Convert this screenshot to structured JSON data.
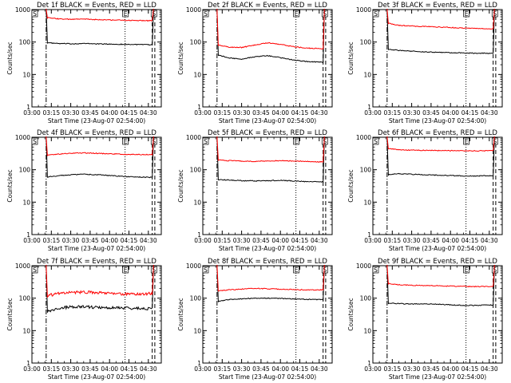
{
  "chart_data": [
    {
      "type": "line",
      "title": "Det 1f BLACK = Events, RED = LLD",
      "xlabel": "Start Time (23-Aug-07 02:54:00)",
      "ylabel": "Counts/sec",
      "yscale": "log",
      "ylim": [
        1,
        1000
      ],
      "xlim_min": [
        0,
        100
      ],
      "xticks_min": [
        0,
        15,
        30,
        45,
        60,
        75,
        90
      ],
      "xtick_labels": [
        "03:00",
        "03:15",
        "03:30",
        "03:45",
        "04:00",
        "04:15",
        "04:30"
      ],
      "yticks": [
        1,
        10,
        100,
        1000
      ],
      "ytick_labels": [
        "1",
        "10",
        "100",
        "1000"
      ],
      "markers": {
        "S": [
          1,
          94
        ],
        "E": [
          72
        ]
      },
      "dashdot_min": [
        11
      ],
      "dotted_min": [
        72
      ],
      "dashed_min": [
        93,
        95
      ],
      "data_start_min": 11,
      "data_end_min": 94,
      "series": [
        {
          "name": "Events",
          "color": "#000000",
          "x": [
            12,
            20,
            30,
            40,
            50,
            60,
            70,
            80,
            93
          ],
          "y": [
            95,
            90,
            88,
            90,
            88,
            86,
            85,
            84,
            82
          ]
        },
        {
          "name": "LLD",
          "color": "#ff0000",
          "x": [
            12,
            20,
            30,
            40,
            50,
            60,
            70,
            80,
            93
          ],
          "y": [
            560,
            520,
            500,
            510,
            490,
            480,
            470,
            460,
            455
          ]
        }
      ]
    },
    {
      "type": "line",
      "title": "Det 2f BLACK = Events, RED = LLD",
      "xlabel": "Start Time (23-Aug-07 02:54:00)",
      "ylabel": "Counts/sec",
      "yscale": "log",
      "ylim": [
        1,
        1000
      ],
      "xlim_min": [
        0,
        100
      ],
      "xticks_min": [
        0,
        15,
        30,
        45,
        60,
        75,
        90
      ],
      "xtick_labels": [
        "03:00",
        "03:15",
        "03:30",
        "03:45",
        "04:00",
        "04:15",
        "04:30"
      ],
      "yticks": [
        1,
        10,
        100,
        1000
      ],
      "ytick_labels": [
        "1",
        "10",
        "100",
        "1000"
      ],
      "markers": {
        "S": [
          1,
          94
        ],
        "E": [
          72
        ]
      },
      "dashdot_min": [
        11
      ],
      "dotted_min": [
        72
      ],
      "dashed_min": [
        93,
        95
      ],
      "data_start_min": 11,
      "data_end_min": 94,
      "series": [
        {
          "name": "Events",
          "color": "#000000",
          "x": [
            12,
            20,
            30,
            40,
            50,
            60,
            70,
            80,
            93
          ],
          "y": [
            40,
            32,
            30,
            35,
            38,
            33,
            28,
            25,
            24
          ]
        },
        {
          "name": "LLD",
          "color": "#ff0000",
          "x": [
            12,
            20,
            30,
            40,
            50,
            60,
            70,
            80,
            93
          ],
          "y": [
            80,
            70,
            68,
            80,
            95,
            85,
            72,
            65,
            62
          ]
        }
      ]
    },
    {
      "type": "line",
      "title": "Det 3f BLACK = Events, RED = LLD",
      "xlabel": "Start Time (23-Aug-07 02:54:00)",
      "ylabel": "Counts/sec",
      "yscale": "log",
      "ylim": [
        1,
        1000
      ],
      "xlim_min": [
        0,
        100
      ],
      "xticks_min": [
        0,
        15,
        30,
        45,
        60,
        75,
        90
      ],
      "xtick_labels": [
        "03:00",
        "03:15",
        "03:30",
        "03:45",
        "04:00",
        "04:15",
        "04:30"
      ],
      "yticks": [
        1,
        10,
        100,
        1000
      ],
      "ytick_labels": [
        "1",
        "10",
        "100",
        "1000"
      ],
      "markers": {
        "S": [
          1,
          94
        ],
        "E": [
          72
        ]
      },
      "dashdot_min": [
        11
      ],
      "dotted_min": [
        72
      ],
      "dashed_min": [
        93,
        95
      ],
      "data_start_min": 11,
      "data_end_min": 94,
      "series": [
        {
          "name": "Events",
          "color": "#000000",
          "x": [
            12,
            20,
            30,
            40,
            50,
            60,
            70,
            80,
            93
          ],
          "y": [
            60,
            55,
            52,
            50,
            48,
            47,
            46,
            45,
            45
          ]
        },
        {
          "name": "LLD",
          "color": "#ff0000",
          "x": [
            12,
            20,
            30,
            40,
            50,
            60,
            70,
            80,
            93
          ],
          "y": [
            380,
            330,
            310,
            300,
            290,
            280,
            270,
            260,
            255
          ]
        }
      ]
    },
    {
      "type": "line",
      "title": "Det 4f BLACK = Events, RED = LLD",
      "xlabel": "Start Time (23-Aug-07 02:54:00)",
      "ylabel": "Counts/sec",
      "yscale": "log",
      "ylim": [
        1,
        1000
      ],
      "xlim_min": [
        0,
        100
      ],
      "xticks_min": [
        0,
        15,
        30,
        45,
        60,
        75,
        90
      ],
      "xtick_labels": [
        "03:00",
        "03:15",
        "03:30",
        "03:45",
        "04:00",
        "04:15",
        "04:30"
      ],
      "yticks": [
        1,
        10,
        100,
        1000
      ],
      "ytick_labels": [
        "1",
        "10",
        "100",
        "1000"
      ],
      "markers": {
        "S": [
          1,
          94
        ],
        "E": [
          72
        ]
      },
      "dashdot_min": [
        11
      ],
      "dotted_min": [
        72
      ],
      "dashed_min": [
        93,
        95
      ],
      "data_start_min": 11,
      "data_end_min": 94,
      "series": [
        {
          "name": "Events",
          "color": "#000000",
          "x": [
            12,
            20,
            30,
            40,
            50,
            60,
            70,
            80,
            93
          ],
          "y": [
            60,
            65,
            70,
            72,
            70,
            66,
            62,
            60,
            58
          ]
        },
        {
          "name": "LLD",
          "color": "#ff0000",
          "x": [
            12,
            20,
            30,
            40,
            50,
            60,
            70,
            80,
            93
          ],
          "y": [
            280,
            300,
            320,
            330,
            320,
            310,
            300,
            295,
            290
          ]
        }
      ]
    },
    {
      "type": "line",
      "title": "Det 5f BLACK = Events, RED = LLD",
      "xlabel": "Start Time (23-Aug-07 02:54:00)",
      "ylabel": "Counts/sec",
      "yscale": "log",
      "ylim": [
        1,
        1000
      ],
      "xlim_min": [
        0,
        100
      ],
      "xticks_min": [
        0,
        15,
        30,
        45,
        60,
        75,
        90
      ],
      "xtick_labels": [
        "03:00",
        "03:15",
        "03:30",
        "03:45",
        "04:00",
        "04:15",
        "04:30"
      ],
      "yticks": [
        1,
        10,
        100,
        1000
      ],
      "ytick_labels": [
        "1",
        "10",
        "100",
        "1000"
      ],
      "markers": {
        "S": [
          1,
          94
        ],
        "E": [
          72
        ]
      },
      "dashdot_min": [
        11
      ],
      "dotted_min": [
        72
      ],
      "dashed_min": [
        93,
        95
      ],
      "data_start_min": 11,
      "data_end_min": 94,
      "series": [
        {
          "name": "Events",
          "color": "#000000",
          "x": [
            12,
            20,
            30,
            40,
            50,
            60,
            70,
            80,
            93
          ],
          "y": [
            50,
            48,
            46,
            45,
            46,
            47,
            45,
            43,
            42
          ]
        },
        {
          "name": "LLD",
          "color": "#ff0000",
          "x": [
            12,
            20,
            30,
            40,
            50,
            60,
            70,
            80,
            93
          ],
          "y": [
            200,
            190,
            185,
            180,
            185,
            190,
            185,
            180,
            175
          ]
        }
      ]
    },
    {
      "type": "line",
      "title": "Det 6f BLACK = Events, RED = LLD",
      "xlabel": "Start Time (23-Aug-07 02:54:00)",
      "ylabel": "Counts/sec",
      "yscale": "log",
      "ylim": [
        1,
        1000
      ],
      "xlim_min": [
        0,
        100
      ],
      "xticks_min": [
        0,
        15,
        30,
        45,
        60,
        75,
        90
      ],
      "xtick_labels": [
        "03:00",
        "03:15",
        "03:30",
        "03:45",
        "04:00",
        "04:15",
        "04:30"
      ],
      "yticks": [
        1,
        10,
        100,
        1000
      ],
      "ytick_labels": [
        "1",
        "10",
        "100",
        "1000"
      ],
      "markers": {
        "S": [
          1,
          94
        ],
        "E": [
          72
        ]
      },
      "dashdot_min": [
        11
      ],
      "dotted_min": [
        72
      ],
      "dashed_min": [
        93,
        95
      ],
      "data_start_min": 11,
      "data_end_min": 94,
      "series": [
        {
          "name": "Events",
          "color": "#000000",
          "x": [
            12,
            20,
            30,
            40,
            50,
            60,
            70,
            80,
            93
          ],
          "y": [
            70,
            75,
            72,
            70,
            68,
            66,
            64,
            64,
            66
          ]
        },
        {
          "name": "LLD",
          "color": "#ff0000",
          "x": [
            12,
            20,
            30,
            40,
            50,
            60,
            70,
            80,
            93
          ],
          "y": [
            450,
            410,
            400,
            395,
            390,
            385,
            380,
            380,
            385
          ]
        }
      ]
    },
    {
      "type": "line",
      "title": "Det 7f BLACK = Events, RED = LLD",
      "xlabel": "Start Time (23-Aug-07 02:54:00)",
      "ylabel": "Counts/sec",
      "yscale": "log",
      "ylim": [
        1,
        1000
      ],
      "xlim_min": [
        0,
        100
      ],
      "xticks_min": [
        0,
        15,
        30,
        45,
        60,
        75,
        90
      ],
      "xtick_labels": [
        "03:00",
        "03:15",
        "03:30",
        "03:45",
        "04:00",
        "04:15",
        "04:30"
      ],
      "yticks": [
        1,
        10,
        100,
        1000
      ],
      "ytick_labels": [
        "1",
        "10",
        "100",
        "1000"
      ],
      "markers": {
        "S": [
          1,
          94
        ],
        "E": [
          72
        ]
      },
      "dashdot_min": [
        11
      ],
      "dotted_min": [
        72
      ],
      "dashed_min": [
        93,
        95
      ],
      "data_start_min": 11,
      "data_end_min": 94,
      "series": [
        {
          "name": "Events",
          "color": "#000000",
          "x": [
            12,
            20,
            30,
            40,
            50,
            60,
            70,
            80,
            93
          ],
          "y": [
            40,
            48,
            55,
            55,
            52,
            50,
            50,
            48,
            48
          ]
        },
        {
          "name": "LLD",
          "color": "#ff0000",
          "x": [
            12,
            20,
            30,
            40,
            50,
            60,
            70,
            80,
            93
          ],
          "y": [
            120,
            140,
            150,
            155,
            150,
            140,
            135,
            130,
            140
          ]
        }
      ]
    },
    {
      "type": "line",
      "title": "Det 8f BLACK = Events, RED = LLD",
      "xlabel": "Start Time (23-Aug-07 02:54:00)",
      "ylabel": "Counts/sec",
      "yscale": "log",
      "ylim": [
        1,
        1000
      ],
      "xlim_min": [
        0,
        100
      ],
      "xticks_min": [
        0,
        15,
        30,
        45,
        60,
        75,
        90
      ],
      "xtick_labels": [
        "03:00",
        "03:15",
        "03:30",
        "03:45",
        "04:00",
        "04:15",
        "04:30"
      ],
      "yticks": [
        1,
        10,
        100,
        1000
      ],
      "ytick_labels": [
        "1",
        "10",
        "100",
        "1000"
      ],
      "markers": {
        "S": [
          1,
          94
        ],
        "E": [
          72
        ]
      },
      "dashdot_min": [
        11
      ],
      "dotted_min": [
        72
      ],
      "dashed_min": [
        93,
        95
      ],
      "data_start_min": 11,
      "data_end_min": 94,
      "series": [
        {
          "name": "Events",
          "color": "#000000",
          "x": [
            12,
            20,
            30,
            40,
            50,
            60,
            70,
            80,
            93
          ],
          "y": [
            80,
            90,
            95,
            100,
            100,
            98,
            95,
            92,
            90
          ]
        },
        {
          "name": "LLD",
          "color": "#ff0000",
          "x": [
            12,
            20,
            30,
            40,
            50,
            60,
            70,
            80,
            93
          ],
          "y": [
            170,
            180,
            190,
            200,
            195,
            190,
            185,
            180,
            180
          ]
        }
      ]
    },
    {
      "type": "line",
      "title": "Det 9f BLACK = Events, RED = LLD",
      "xlabel": "Start Time (23-Aug-07 02:54:00)",
      "ylabel": "Counts/sec",
      "yscale": "log",
      "ylim": [
        1,
        1000
      ],
      "xlim_min": [
        0,
        100
      ],
      "xticks_min": [
        0,
        15,
        30,
        45,
        60,
        75,
        90
      ],
      "xtick_labels": [
        "03:00",
        "03:15",
        "03:30",
        "03:45",
        "04:00",
        "04:15",
        "04:30"
      ],
      "yticks": [
        1,
        10,
        100,
        1000
      ],
      "ytick_labels": [
        "1",
        "10",
        "100",
        "1000"
      ],
      "markers": {
        "S": [
          1,
          94
        ],
        "E": [
          72
        ]
      },
      "dashdot_min": [
        11
      ],
      "dotted_min": [
        72
      ],
      "dashed_min": [
        93,
        95
      ],
      "data_start_min": 11,
      "data_end_min": 94,
      "series": [
        {
          "name": "Events",
          "color": "#000000",
          "x": [
            12,
            20,
            30,
            40,
            50,
            60,
            70,
            80,
            93
          ],
          "y": [
            70,
            68,
            66,
            67,
            65,
            62,
            60,
            60,
            62
          ]
        },
        {
          "name": "LLD",
          "color": "#ff0000",
          "x": [
            12,
            20,
            30,
            40,
            50,
            60,
            70,
            80,
            93
          ],
          "y": [
            280,
            260,
            250,
            245,
            240,
            235,
            230,
            228,
            230
          ]
        }
      ]
    }
  ]
}
